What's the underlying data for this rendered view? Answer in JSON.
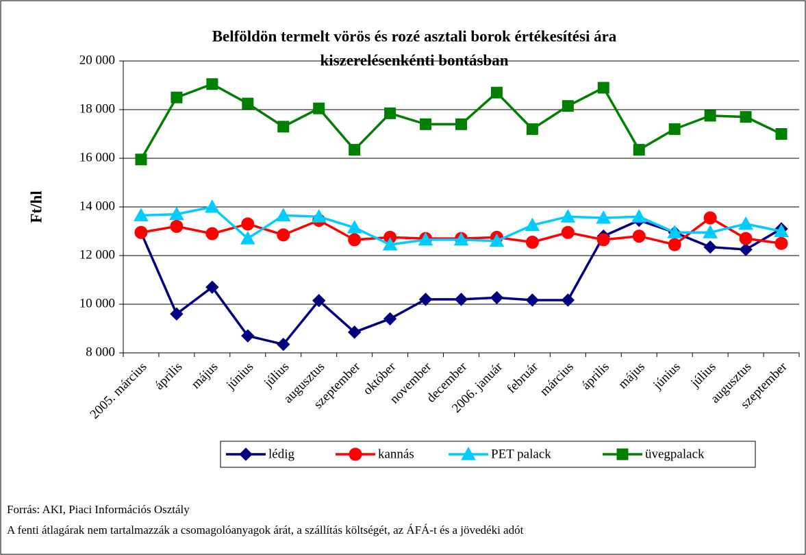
{
  "chart_data": {
    "type": "line",
    "title": [
      "Belföldön termelt vörös és rozé asztali borok értékesítési ára",
      "kiszerelésenkénti bontásban"
    ],
    "y_label": "Ft/hl",
    "categories": [
      "2005. március",
      "április",
      "május",
      "június",
      "július",
      "augusztus",
      "szeptember",
      "október",
      "november",
      "december",
      "2006. január",
      "február",
      "március",
      "április",
      "május",
      "június",
      "július",
      "augusztus",
      "szeptember"
    ],
    "series": [
      {
        "name": "lédig",
        "color": "#000080",
        "marker": "diamond",
        "values": [
          12950,
          9600,
          10700,
          8700,
          8350,
          10150,
          8850,
          9400,
          10200,
          10200,
          10270,
          10170,
          10170,
          12800,
          13450,
          12950,
          12350,
          12250,
          13100
        ]
      },
      {
        "name": "kannás",
        "color": "#ff0000",
        "marker": "circle",
        "values": [
          12950,
          13200,
          12900,
          13300,
          12850,
          13450,
          12650,
          12750,
          12700,
          12700,
          12750,
          12550,
          12950,
          12650,
          12800,
          12450,
          13550,
          12700,
          12500
        ]
      },
      {
        "name": "PET palack",
        "color": "#00ccff",
        "marker": "triangle",
        "values": [
          13650,
          13700,
          14000,
          12700,
          13650,
          13600,
          13150,
          12450,
          12650,
          12650,
          12600,
          13250,
          13600,
          13550,
          13600,
          12950,
          12950,
          13300,
          13000
        ]
      },
      {
        "name": "üvegpalack",
        "color": "#008000",
        "marker": "square",
        "values": [
          15950,
          18500,
          19050,
          18250,
          17300,
          18050,
          16350,
          17850,
          17400,
          17400,
          18700,
          17200,
          18150,
          18900,
          16350,
          17200,
          17750,
          17700,
          17000
        ]
      }
    ],
    "ylim": [
      8000,
      20000
    ],
    "yticks": [
      {
        "value": 8000,
        "label": "8 000"
      },
      {
        "value": 10000,
        "label": "10 000"
      },
      {
        "value": 12000,
        "label": "12 000"
      },
      {
        "value": 14000,
        "label": "14 000"
      },
      {
        "value": 16000,
        "label": "16 000"
      },
      {
        "value": 18000,
        "label": "18 000"
      },
      {
        "value": 20000,
        "label": "20 000"
      }
    ],
    "grid": true,
    "legend": "bottom"
  },
  "notes": [
    "Forrás: AKI, Piaci Információs Osztály",
    "A fenti átlagárak nem tartalmazzák a csomagolóanyagok árát, a szállítás költségét, az ÁFÁ-t és a jövedéki adót"
  ]
}
